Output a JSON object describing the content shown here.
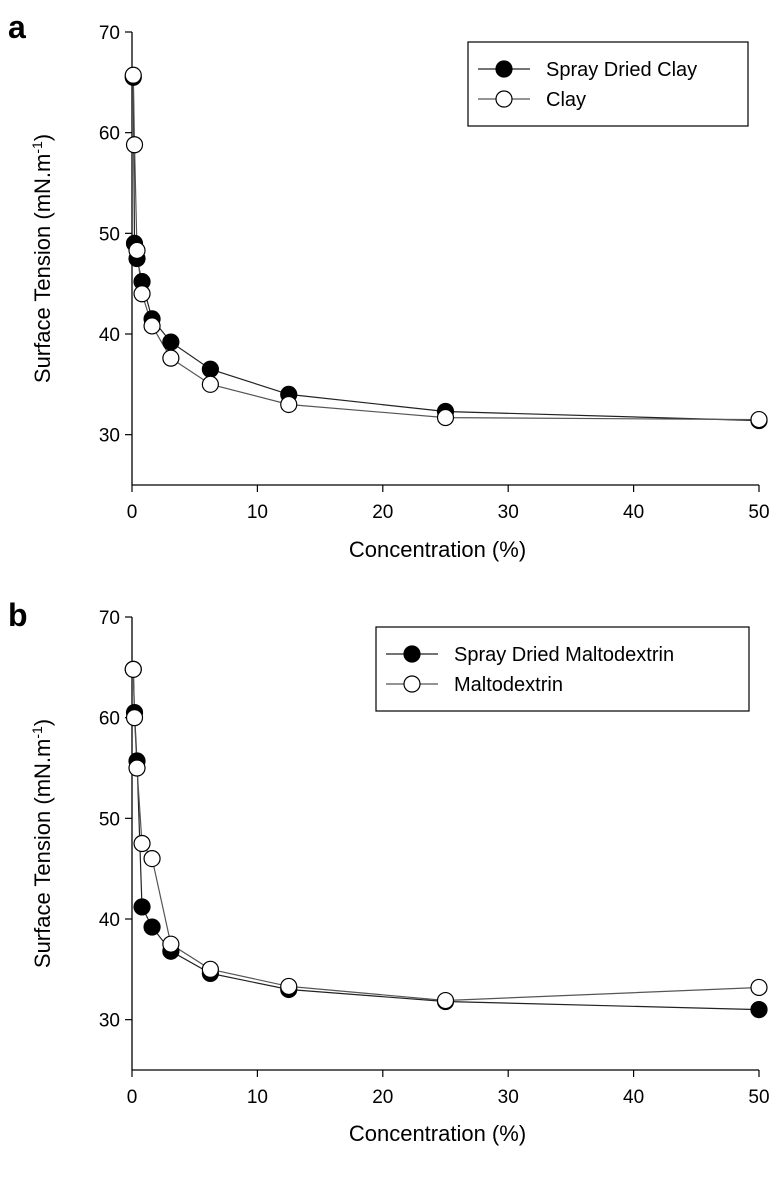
{
  "chart_data": [
    {
      "panel": "a",
      "type": "line",
      "xlabel": "Concentration (%)",
      "ylabel": {
        "base": "Surface Tension (mN.m",
        "sup": "-1",
        "close": ")"
      },
      "xlim": [
        0,
        50
      ],
      "ylim": [
        25,
        70
      ],
      "xticks": [
        0,
        10,
        20,
        30,
        40,
        50
      ],
      "yticks": [
        30,
        40,
        50,
        60,
        70
      ],
      "grid": false,
      "legend_position": "top-right",
      "series": [
        {
          "name": "Spray Dried Clay",
          "marker": "filled-circle",
          "color": "#000000",
          "x": [
            0.1,
            0.2,
            0.4,
            0.8,
            1.6,
            3.1,
            6.25,
            12.5,
            25,
            50
          ],
          "y": [
            65.5,
            49.0,
            47.5,
            45.2,
            41.5,
            39.2,
            36.5,
            34.0,
            32.3,
            31.4
          ]
        },
        {
          "name": "Clay",
          "marker": "open-circle",
          "color": "#000000",
          "x": [
            0.1,
            0.2,
            0.4,
            0.8,
            1.6,
            3.1,
            6.25,
            12.5,
            25,
            50
          ],
          "y": [
            65.7,
            58.8,
            48.3,
            44.0,
            40.8,
            37.6,
            35.0,
            33.0,
            31.7,
            31.5
          ]
        }
      ]
    },
    {
      "panel": "b",
      "type": "line",
      "xlabel": "Concentration (%)",
      "ylabel": {
        "base": "Surface Tension (mN.m",
        "sup": "-1",
        "close": ")"
      },
      "xlim": [
        0,
        50
      ],
      "ylim": [
        25,
        70
      ],
      "xticks": [
        0,
        10,
        20,
        30,
        40,
        50
      ],
      "yticks": [
        30,
        40,
        50,
        60,
        70
      ],
      "grid": false,
      "legend_position": "top-right",
      "series": [
        {
          "name": "Spray Dried Maltodextrin",
          "marker": "filled-circle",
          "color": "#000000",
          "x": [
            0.1,
            0.2,
            0.4,
            0.8,
            1.6,
            3.1,
            6.25,
            12.5,
            25,
            50
          ],
          "y": [
            64.8,
            60.5,
            55.7,
            41.2,
            39.2,
            36.8,
            34.6,
            33.0,
            31.8,
            31.0
          ]
        },
        {
          "name": "Maltodextrin",
          "marker": "open-circle",
          "color": "#000000",
          "x": [
            0.1,
            0.2,
            0.4,
            0.8,
            1.6,
            3.1,
            6.25,
            12.5,
            25,
            50
          ],
          "y": [
            64.8,
            60.0,
            55.0,
            47.5,
            46.0,
            37.5,
            35.0,
            33.3,
            31.9,
            33.2
          ]
        }
      ]
    }
  ]
}
